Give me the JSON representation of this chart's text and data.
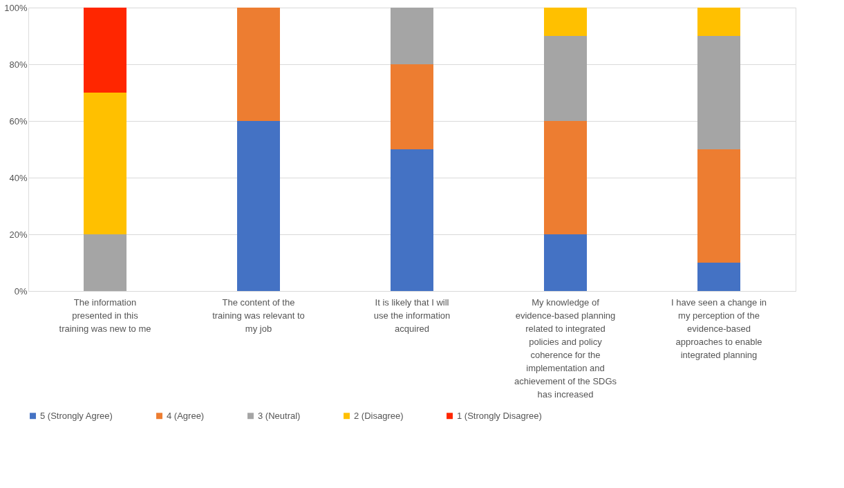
{
  "chart_data": {
    "type": "bar",
    "stacked": true,
    "categories": [
      "The information presented in this training was new to me",
      "The content of the training was relevant to my job",
      "It is likely that I will use the information acquired",
      "My knowledge of evidence-based planning related to integrated policies and policy coherence for the implementation and achievement of the SDGs has increased",
      "I have seen a change in my perception of the evidence-based approaches to enable integrated planning"
    ],
    "series": [
      {
        "name": "5 (Strongly Agree)",
        "color": "#4472c4",
        "values": [
          0,
          60,
          50,
          20,
          10
        ]
      },
      {
        "name": "4 (Agree)",
        "color": "#ed7d31",
        "values": [
          0,
          40,
          30,
          40,
          40
        ]
      },
      {
        "name": "3 (Neutral)",
        "color": "#a5a5a5",
        "values": [
          20,
          0,
          20,
          30,
          40
        ]
      },
      {
        "name": "2 (Disagree)",
        "color": "#ffc000",
        "values": [
          50,
          0,
          0,
          10,
          10
        ]
      },
      {
        "name": "1 (Strongly Disagree)",
        "color": "#ff2600",
        "values": [
          30,
          0,
          0,
          0,
          0
        ]
      }
    ],
    "ylim": [
      0,
      100
    ],
    "yticks": [
      {
        "value": 0,
        "label": "0%"
      },
      {
        "value": 20,
        "label": "20%"
      },
      {
        "value": 40,
        "label": "40%"
      },
      {
        "value": 60,
        "label": "60%"
      },
      {
        "value": 80,
        "label": "80%"
      },
      {
        "value": 100,
        "label": "100%"
      }
    ],
    "grid": "y",
    "legend": "bottom"
  }
}
